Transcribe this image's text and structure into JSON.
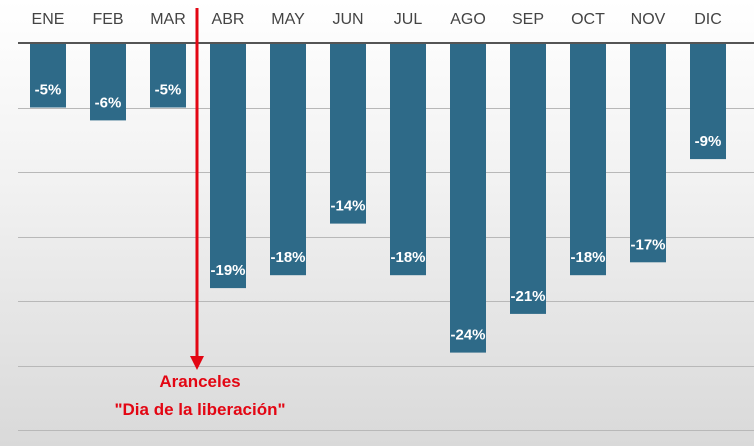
{
  "chart_data": {
    "type": "bar",
    "categories": [
      "ENE",
      "FEB",
      "MAR",
      "ABR",
      "MAY",
      "JUN",
      "JUL",
      "AGO",
      "SEP",
      "OCT",
      "NOV",
      "DIC"
    ],
    "values": [
      -5,
      -6,
      -5,
      -19,
      -18,
      -14,
      -18,
      -24,
      -21,
      -18,
      -17,
      -9
    ],
    "value_labels": [
      "-5%",
      "-6%",
      "-5%",
      "-19%",
      "-18%",
      "-14%",
      "-18%",
      "-24%",
      "-21%",
      "-18%",
      "-17%",
      "-9%"
    ],
    "ylim": [
      -30,
      0
    ],
    "grid": true,
    "x_axis_position": "top",
    "bar_color": "#2e6a88",
    "label_color": "#ffffff",
    "annotation": {
      "line1": "Aranceles",
      "line2": "\"Dia de la liberación\"",
      "between": [
        "MAR",
        "ABR"
      ],
      "color": "#e30613"
    }
  }
}
